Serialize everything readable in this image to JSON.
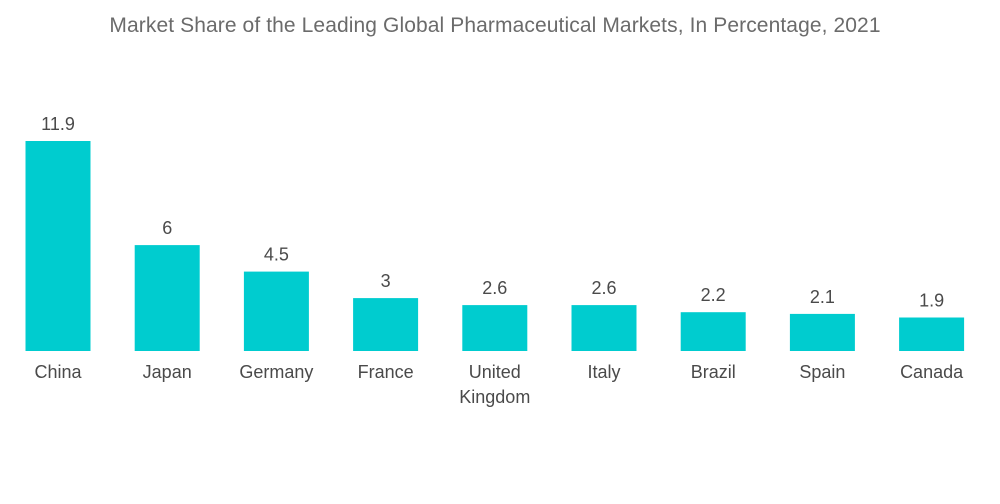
{
  "chart_data": {
    "type": "bar",
    "title": "Market Share of the Leading Global Pharmaceutical Markets, In Percentage, 2021",
    "categories": [
      "China",
      "Japan",
      "Germany",
      "France",
      "United Kingdom",
      "Italy",
      "Brazil",
      "Spain",
      "Canada"
    ],
    "category_lines": [
      [
        "China"
      ],
      [
        "Japan"
      ],
      [
        "Germany"
      ],
      [
        "France"
      ],
      [
        "United",
        "Kingdom"
      ],
      [
        "Italy"
      ],
      [
        "Brazil"
      ],
      [
        "Spain"
      ],
      [
        "Canada"
      ]
    ],
    "values": [
      11.9,
      6,
      4.5,
      3,
      2.6,
      2.6,
      2.2,
      2.1,
      1.9
    ],
    "value_labels": [
      "11.9",
      "6",
      "4.5",
      "3",
      "2.6",
      "2.6",
      "2.2",
      "2.1",
      "1.9"
    ],
    "xlabel": "",
    "ylabel": "",
    "ylim": [
      0,
      11.9
    ],
    "grid": false,
    "legend": "none",
    "colors": {
      "bar": "#00cccf",
      "text": "#4a4a4a",
      "title": "#6b6b6b"
    }
  }
}
